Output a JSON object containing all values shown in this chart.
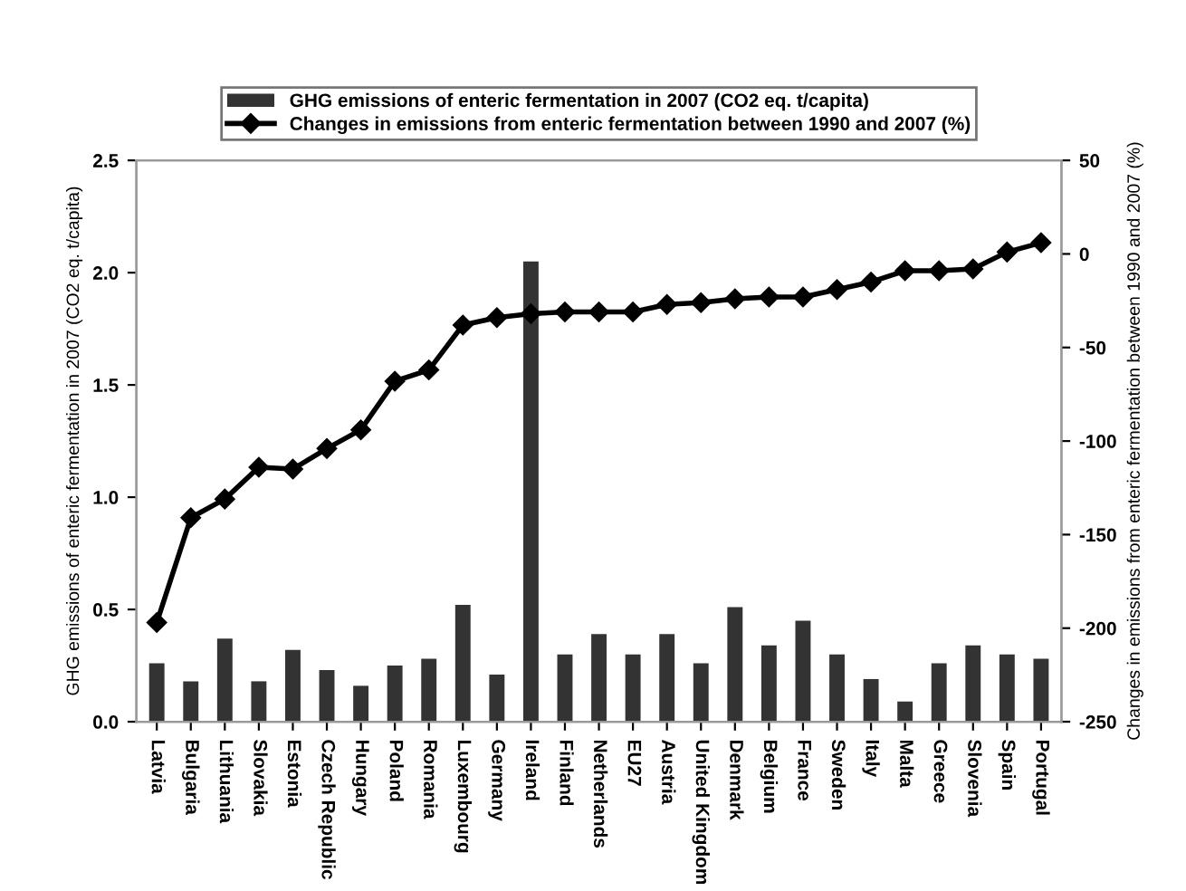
{
  "chart_data": {
    "type": "bar",
    "categories": [
      "Latvia",
      "Bulgaria",
      "Lithuania",
      "Slovakia",
      "Estonia",
      "Czech Republic",
      "Hungary",
      "Poland",
      "Romania",
      "Luxembourg",
      "Germany",
      "Ireland",
      "Finland",
      "Netherlands",
      "EU27",
      "Austria",
      "United Kingdom",
      "Denmark",
      "Belgium",
      "France",
      "Sweden",
      "Italy",
      "Malta",
      "Greece",
      "Slovenia",
      "Spain",
      "Portugal"
    ],
    "series": [
      {
        "name": "GHG emissions of enteric fermentation in 2007 (CO2 eq. t/capita)",
        "color": "#333333",
        "values": [
          0.26,
          0.18,
          0.37,
          0.18,
          0.32,
          0.23,
          0.16,
          0.25,
          0.28,
          0.52,
          0.21,
          2.05,
          0.3,
          0.39,
          0.3,
          0.39,
          0.26,
          0.51,
          0.34,
          0.45,
          0.3,
          0.19,
          0.09,
          0.26,
          0.34,
          0.3,
          0.28
        ]
      },
      {
        "name": "Changes in emissions from enteric fermentation between 1990 and 2007 (%)",
        "type": "line",
        "axis": "y2",
        "color": "#000000",
        "marker": "diamond",
        "values": [
          -197,
          -141,
          -131,
          -114,
          -115,
          -104,
          -94,
          -68,
          -62,
          -38,
          -34,
          -32,
          -31,
          -31,
          -31,
          -27,
          -26,
          -24,
          -23,
          -23,
          -19,
          -15,
          -9,
          -9,
          -8,
          1,
          6
        ]
      }
    ],
    "ylabel": "GHG emissions of enteric fermentation in 2007 (CO2 eq. t/capita)",
    "y2label": "Changes in emissions from enteric fermentation between 1990 and 2007 (%)",
    "ylim": [
      0,
      2.5
    ],
    "yticks": [
      {
        "value": 0,
        "label": "0.0"
      },
      {
        "value": 0.5,
        "label": "0.5"
      },
      {
        "value": 1,
        "label": "1.0"
      },
      {
        "value": 1.5,
        "label": "1.5"
      },
      {
        "value": 2,
        "label": "2.0"
      },
      {
        "value": 2.5,
        "label": "2.5"
      }
    ],
    "y2lim": [
      -250,
      50
    ],
    "y2ticks": [
      -250,
      -200,
      -150,
      -100,
      -50,
      0,
      50
    ],
    "grid": false,
    "legend": "top"
  }
}
